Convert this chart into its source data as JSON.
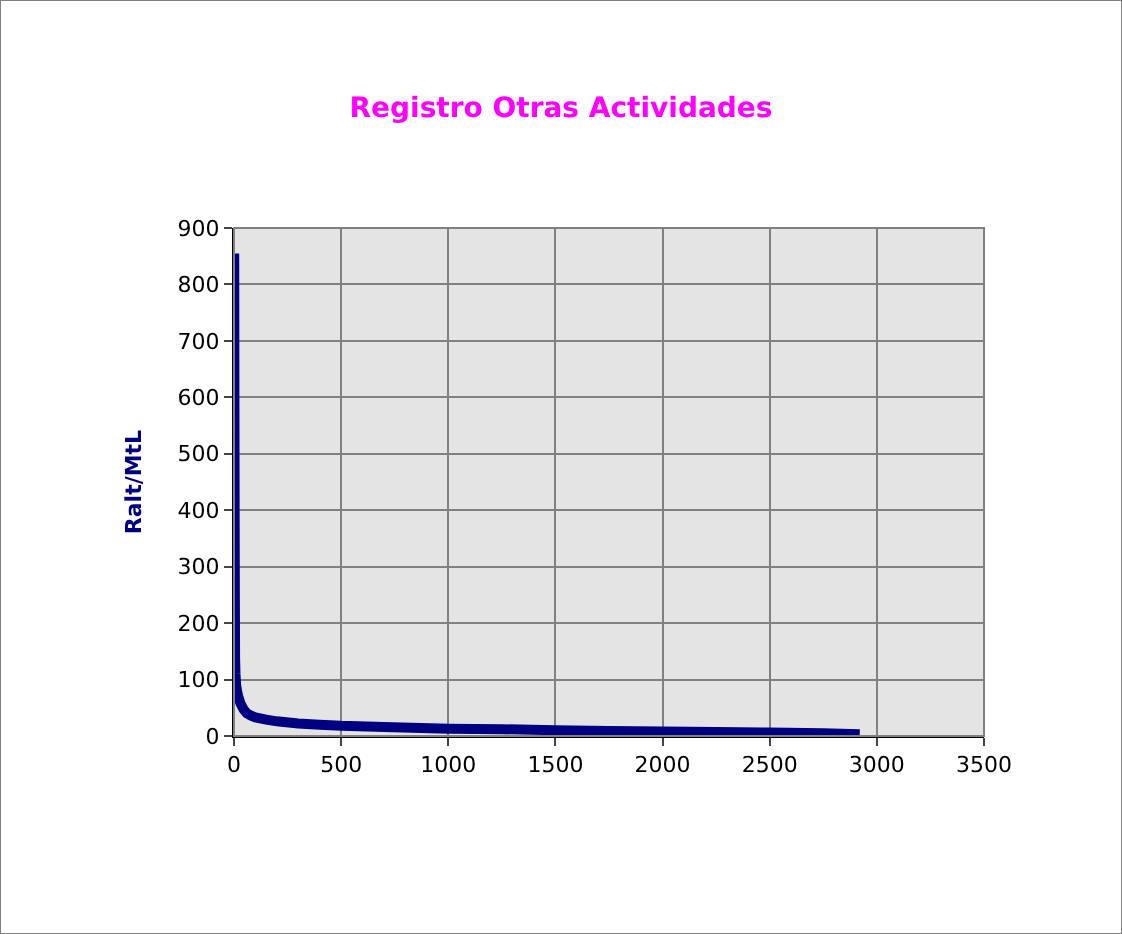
{
  "chart_data": {
    "type": "line",
    "title": "Registro Otras Actividades",
    "ylabel": "Ralt/MtL",
    "series": [
      {
        "color": "#000080",
        "x": [
          1,
          2,
          3,
          4,
          5,
          7,
          10,
          15,
          20,
          30,
          45,
          60,
          80,
          100,
          150,
          200,
          300,
          400,
          500,
          700,
          1000,
          1250,
          1500,
          1750,
          2000,
          2250,
          2500,
          2750,
          2920
        ],
        "values": [
          855,
          600,
          400,
          250,
          140,
          110,
          90,
          78,
          70,
          58,
          47,
          40,
          36,
          33,
          29,
          26,
          22,
          20,
          18,
          16,
          13,
          12,
          10,
          9,
          8,
          7,
          6,
          5,
          3
        ]
      }
    ],
    "xlim": [
      0,
      3500
    ],
    "xticks": [
      0,
      500,
      1000,
      1500,
      2000,
      2500,
      3000,
      3500
    ],
    "ylim": [
      0,
      900
    ],
    "yticks": [
      0,
      100,
      200,
      300,
      400,
      500,
      600,
      700,
      800,
      900
    ],
    "grid": true,
    "marker": "none",
    "line_style": "solid"
  }
}
